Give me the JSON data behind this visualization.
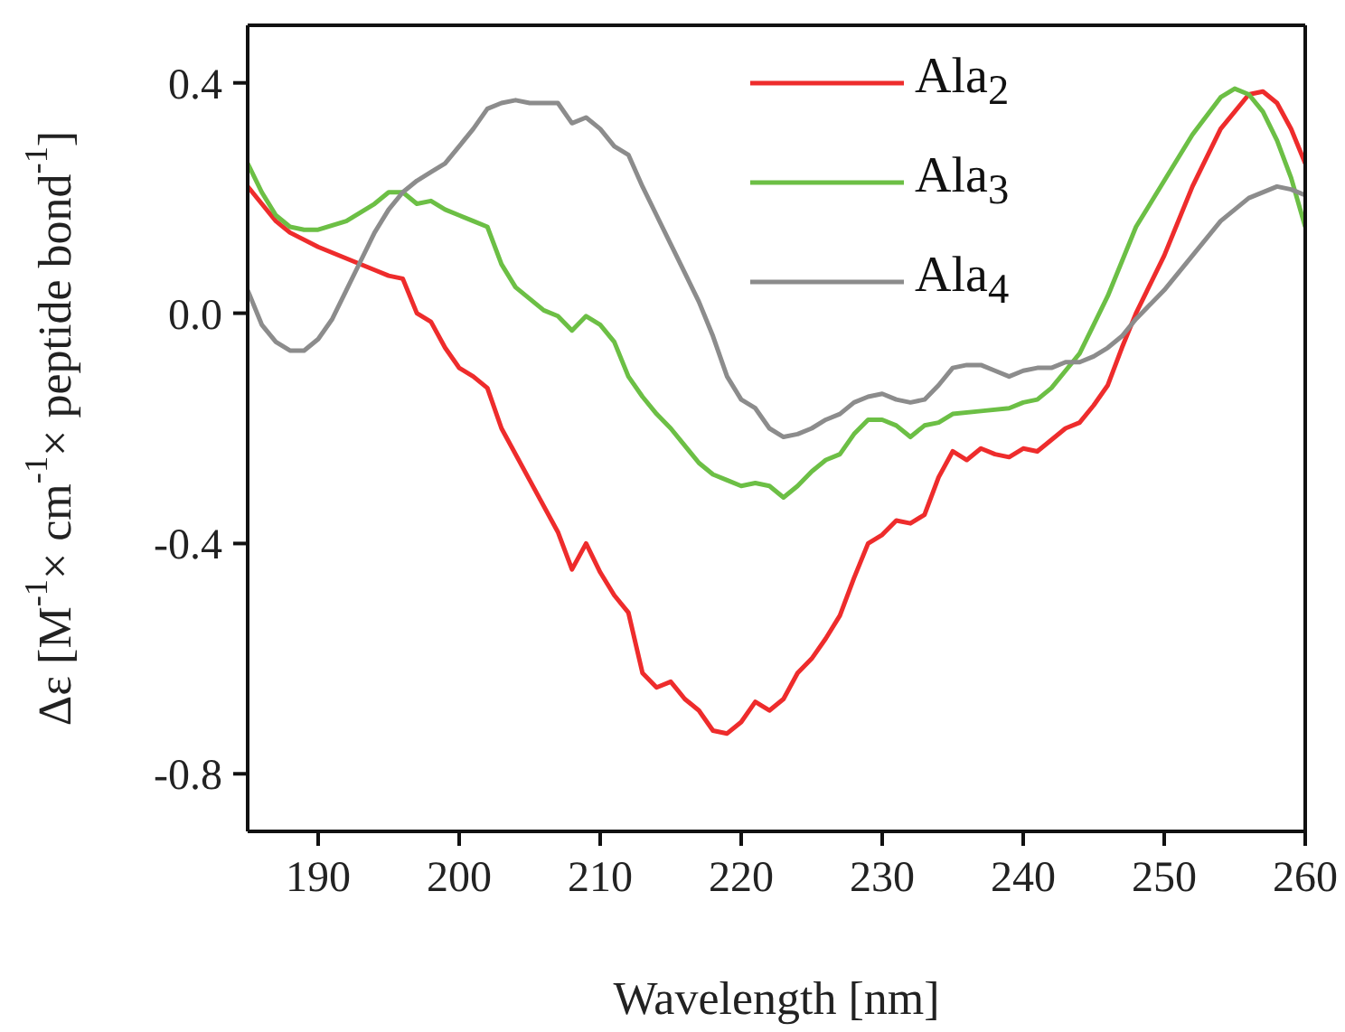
{
  "chart_data": {
    "type": "line",
    "xlabel": "Wavelength [nm]",
    "ylabel": "Δε [M$^{-1}$× cm$^{-1}$× peptide bond$^{-1}$]",
    "xlim": [
      185,
      260
    ],
    "xticks": [
      190,
      200,
      210,
      220,
      230,
      240,
      250,
      260
    ],
    "ylim": [
      -0.9,
      0.5
    ],
    "yticks": [
      {
        "value": -0.8,
        "label": "-0.8"
      },
      -0.4,
      {
        "value": 0,
        "label": "0.0"
      },
      0.4
    ],
    "legend": "top right",
    "marker": "none",
    "line_style": "solid",
    "series": [
      {
        "name": "Ala$_{2}$",
        "color": "#ee2c2c",
        "x": [
          185,
          186,
          187,
          188,
          190,
          192,
          194,
          195,
          196,
          197,
          198,
          199,
          200,
          201,
          202,
          203,
          205,
          207,
          208,
          209,
          210,
          211,
          212,
          213,
          214,
          215,
          216,
          217,
          218,
          219,
          220,
          221,
          222,
          223,
          224,
          225,
          226,
          227,
          228,
          229,
          230,
          231,
          232,
          233,
          234,
          235,
          236,
          237,
          238,
          239,
          240,
          241,
          242,
          243,
          244,
          245,
          246,
          247,
          248,
          250,
          252,
          254,
          256,
          257,
          258,
          259,
          260
        ],
        "values": [
          0.22,
          0.19,
          0.16,
          0.14,
          0.115,
          0.095,
          0.075,
          0.065,
          0.06,
          0.0,
          -0.015,
          -0.06,
          -0.095,
          -0.11,
          -0.13,
          -0.2,
          -0.29,
          -0.38,
          -0.445,
          -0.4,
          -0.45,
          -0.49,
          -0.52,
          -0.625,
          -0.65,
          -0.64,
          -0.67,
          -0.69,
          -0.725,
          -0.73,
          -0.71,
          -0.675,
          -0.69,
          -0.67,
          -0.625,
          -0.6,
          -0.565,
          -0.525,
          -0.46,
          -0.4,
          -0.385,
          -0.36,
          -0.365,
          -0.35,
          -0.285,
          -0.24,
          -0.255,
          -0.235,
          -0.245,
          -0.25,
          -0.235,
          -0.24,
          -0.22,
          -0.2,
          -0.19,
          -0.16,
          -0.125,
          -0.06,
          0.0,
          0.1,
          0.22,
          0.32,
          0.38,
          0.385,
          0.365,
          0.32,
          0.26
        ]
      },
      {
        "name": "Ala$_{3}$",
        "color": "#6cbf45",
        "x": [
          185,
          186,
          187,
          188,
          189,
          190,
          192,
          194,
          195,
          196,
          197,
          198,
          199,
          200,
          201,
          202,
          203,
          204,
          205,
          206,
          207,
          208,
          209,
          210,
          211,
          212,
          213,
          214,
          215,
          216,
          217,
          218,
          219,
          220,
          221,
          222,
          223,
          224,
          225,
          226,
          227,
          228,
          229,
          230,
          231,
          232,
          233,
          234,
          235,
          237,
          239,
          240,
          241,
          242,
          243,
          244,
          245,
          246,
          248,
          250,
          252,
          254,
          255,
          256,
          257,
          258,
          259,
          260
        ],
        "values": [
          0.26,
          0.21,
          0.17,
          0.15,
          0.145,
          0.145,
          0.16,
          0.19,
          0.21,
          0.21,
          0.19,
          0.195,
          0.18,
          0.17,
          0.16,
          0.15,
          0.085,
          0.045,
          0.025,
          0.005,
          -0.005,
          -0.03,
          -0.005,
          -0.02,
          -0.05,
          -0.11,
          -0.145,
          -0.175,
          -0.2,
          -0.23,
          -0.26,
          -0.28,
          -0.29,
          -0.3,
          -0.295,
          -0.3,
          -0.32,
          -0.3,
          -0.275,
          -0.255,
          -0.245,
          -0.21,
          -0.185,
          -0.185,
          -0.195,
          -0.215,
          -0.195,
          -0.19,
          -0.175,
          -0.17,
          -0.165,
          -0.155,
          -0.15,
          -0.13,
          -0.1,
          -0.07,
          -0.02,
          0.03,
          0.15,
          0.23,
          0.31,
          0.375,
          0.39,
          0.38,
          0.35,
          0.3,
          0.235,
          0.15
        ]
      },
      {
        "name": "Ala$_{4}$",
        "color": "#8c8c8c",
        "x": [
          185,
          186,
          187,
          188,
          189,
          190,
          191,
          192,
          193,
          194,
          195,
          196,
          197,
          198,
          199,
          200,
          201,
          202,
          203,
          204,
          205,
          206,
          207,
          208,
          209,
          210,
          211,
          212,
          213,
          214,
          215,
          216,
          217,
          218,
          219,
          220,
          221,
          222,
          223,
          224,
          225,
          226,
          227,
          228,
          229,
          230,
          231,
          232,
          233,
          234,
          235,
          236,
          237,
          238,
          239,
          240,
          241,
          242,
          243,
          244,
          245,
          246,
          247,
          248,
          250,
          252,
          254,
          256,
          258,
          259,
          260
        ],
        "values": [
          0.04,
          -0.02,
          -0.05,
          -0.065,
          -0.065,
          -0.045,
          -0.01,
          0.04,
          0.09,
          0.14,
          0.18,
          0.21,
          0.23,
          0.245,
          0.26,
          0.29,
          0.32,
          0.355,
          0.365,
          0.37,
          0.365,
          0.365,
          0.365,
          0.33,
          0.34,
          0.32,
          0.29,
          0.275,
          0.22,
          0.17,
          0.12,
          0.07,
          0.02,
          -0.04,
          -0.11,
          -0.15,
          -0.165,
          -0.2,
          -0.215,
          -0.21,
          -0.2,
          -0.185,
          -0.175,
          -0.155,
          -0.145,
          -0.14,
          -0.15,
          -0.155,
          -0.15,
          -0.125,
          -0.095,
          -0.09,
          -0.09,
          -0.1,
          -0.11,
          -0.1,
          -0.095,
          -0.095,
          -0.085,
          -0.085,
          -0.075,
          -0.06,
          -0.04,
          -0.01,
          0.04,
          0.1,
          0.16,
          0.2,
          0.22,
          0.215,
          0.205
        ]
      }
    ]
  }
}
